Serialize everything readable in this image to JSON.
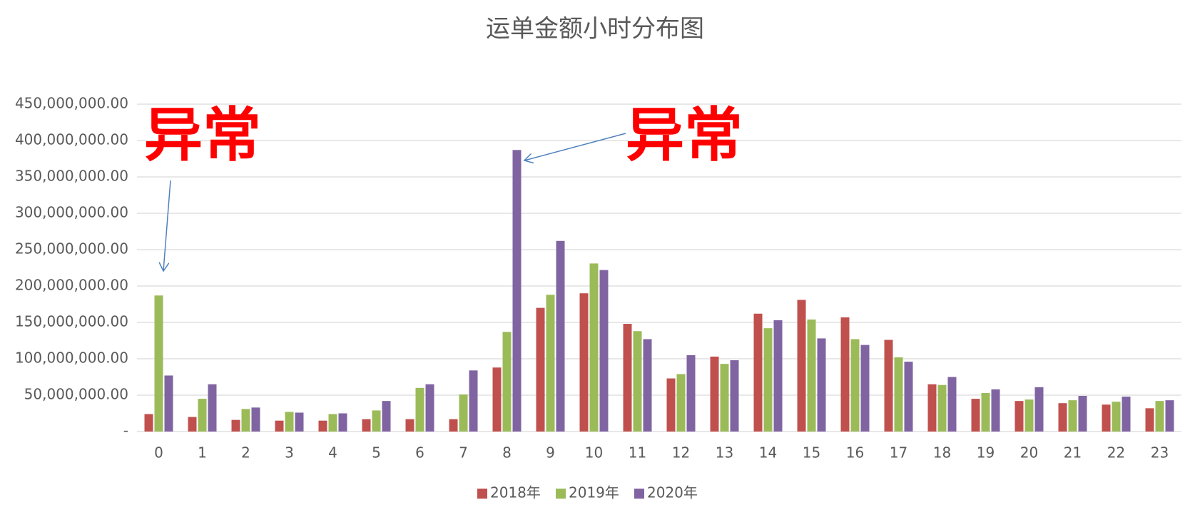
{
  "chart_data": {
    "type": "bar",
    "title": "运单金额小时分布图",
    "categories": [
      "0",
      "1",
      "2",
      "3",
      "4",
      "5",
      "6",
      "7",
      "8",
      "9",
      "10",
      "11",
      "12",
      "13",
      "14",
      "15",
      "16",
      "17",
      "18",
      "19",
      "20",
      "21",
      "22",
      "23"
    ],
    "series": [
      {
        "name": "2018年",
        "color": "#c0504d",
        "values": [
          24000000,
          20000000,
          16000000,
          15000000,
          15000000,
          17000000,
          17000000,
          17000000,
          88000000,
          170000000,
          190000000,
          148000000,
          73000000,
          103000000,
          162000000,
          181000000,
          157000000,
          126000000,
          65000000,
          45000000,
          42000000,
          39000000,
          37000000,
          32000000
        ]
      },
      {
        "name": "2019年",
        "color": "#9bbb59",
        "values": [
          187000000,
          45000000,
          31000000,
          27000000,
          24000000,
          29000000,
          60000000,
          51000000,
          137000000,
          188000000,
          231000000,
          138000000,
          79000000,
          93000000,
          142000000,
          154000000,
          127000000,
          102000000,
          64000000,
          53000000,
          44000000,
          43000000,
          41000000,
          42000000
        ]
      },
      {
        "name": "2020年",
        "color": "#8064a2",
        "values": [
          77000000,
          65000000,
          33000000,
          26000000,
          25000000,
          42000000,
          65000000,
          84000000,
          387000000,
          262000000,
          222000000,
          127000000,
          105000000,
          98000000,
          153000000,
          128000000,
          119000000,
          96000000,
          75000000,
          58000000,
          61000000,
          49000000,
          48000000,
          43000000
        ]
      }
    ],
    "ylim": [
      0,
      450000000
    ],
    "yticks": [
      {
        "value": 0,
        "label": "-"
      },
      {
        "value": 50000000,
        "label": "50,000,000.00"
      },
      {
        "value": 100000000,
        "label": "100,000,000.00"
      },
      {
        "value": 150000000,
        "label": "150,000,000.00"
      },
      {
        "value": 200000000,
        "label": "200,000,000.00"
      },
      {
        "value": 250000000,
        "label": "250,000,000.00"
      },
      {
        "value": 300000000,
        "label": "300,000,000.00"
      },
      {
        "value": 350000000,
        "label": "350,000,000.00"
      },
      {
        "value": 400000000,
        "label": "400,000,000.00"
      },
      {
        "value": 450000000,
        "label": "450,000,000.00"
      }
    ],
    "grid": true,
    "legend": "bottom",
    "annotations": [
      "异常",
      "异常"
    ]
  }
}
